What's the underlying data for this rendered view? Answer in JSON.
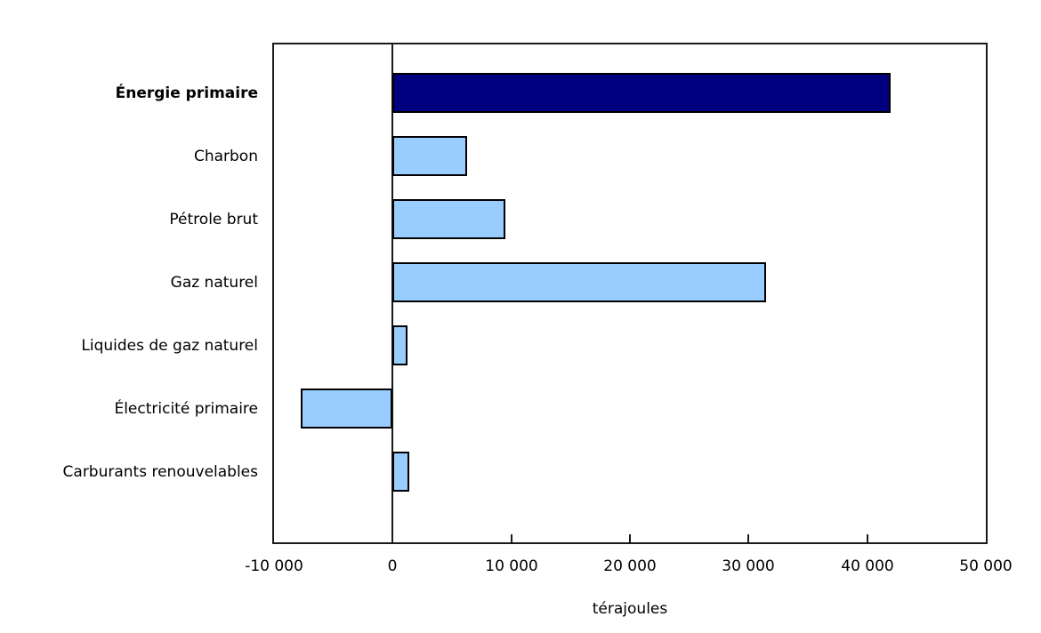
{
  "chart_data": {
    "type": "bar",
    "orientation": "horizontal",
    "title": "",
    "xlabel": "térajoules",
    "ylabel": "",
    "categories": [
      "Énergie primaire",
      "Charbon",
      "Pétrole brut",
      "Gaz naturel",
      "Liquides de gaz naturel",
      "Électricité primaire",
      "Carburants renouvelables"
    ],
    "values": [
      42000,
      6300,
      9500,
      31500,
      1300,
      -7700,
      1400
    ],
    "unit": "térajoules",
    "emphasized_category": "Énergie primaire",
    "xlim": [
      -10000,
      50000
    ],
    "x_ticks": [
      -10000,
      0,
      10000,
      20000,
      30000,
      40000,
      50000
    ],
    "x_tick_labels": [
      "-10 000",
      "0",
      "10 000",
      "20 000",
      "30 000",
      "40 000",
      "50 000"
    ],
    "bar_colors": [
      "#000080",
      "#99CCFF",
      "#99CCFF",
      "#99CCFF",
      "#99CCFF",
      "#99CCFF",
      "#99CCFF"
    ],
    "bar_border_color": "#000000",
    "axis_color": "#1a1a1a",
    "background_color": "#FFFFFF",
    "grid": false,
    "legend": null
  }
}
